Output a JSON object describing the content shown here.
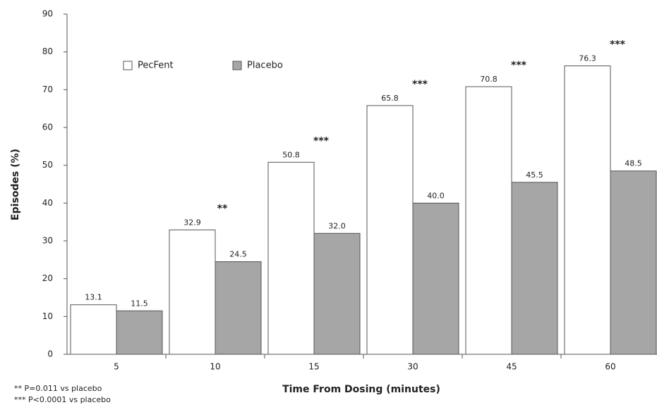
{
  "chart_data": {
    "type": "bar",
    "categories": [
      "5",
      "10",
      "15",
      "30",
      "45",
      "60"
    ],
    "series": [
      {
        "name": "PecFent",
        "color": "#ffffff",
        "values": [
          13.1,
          32.9,
          50.8,
          65.8,
          70.8,
          76.3
        ],
        "value_labels": [
          "13.1",
          "32.9",
          "50.8",
          "65.8",
          "70.8",
          "76.3"
        ]
      },
      {
        "name": "Placebo",
        "color": "#a6a6a6",
        "values": [
          11.5,
          24.5,
          32.0,
          40.0,
          45.5,
          48.5
        ],
        "value_labels": [
          "11.5",
          "24.5",
          "32.0",
          "40.0",
          "45.5",
          "48.5"
        ]
      }
    ],
    "significance": [
      null,
      "**",
      "***",
      "***",
      "***",
      "***"
    ],
    "ylabel": "Episodes (%)",
    "xlabel": "Time From Dosing (minutes)",
    "footnotes": [
      "** P=0.011 vs placebo",
      "*** P<0.0001 vs placebo"
    ],
    "ylim": [
      0,
      90
    ],
    "yticks": [
      0,
      10,
      20,
      30,
      40,
      50,
      60,
      70,
      80,
      90
    ],
    "grid": false,
    "legend": "top-left"
  }
}
